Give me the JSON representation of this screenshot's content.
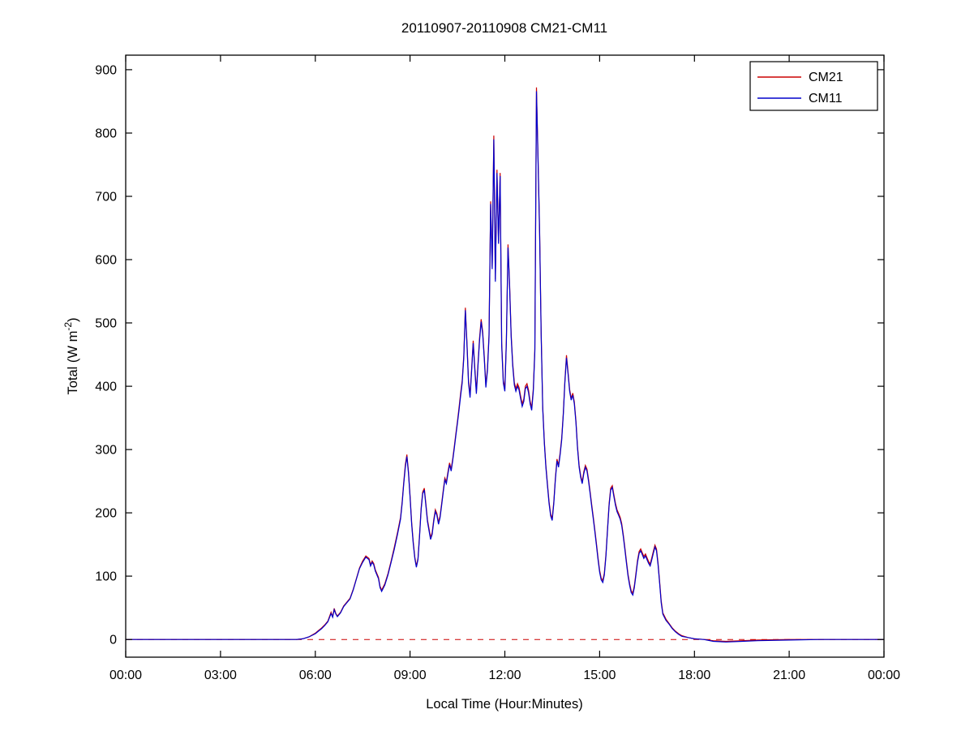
{
  "figure": {
    "title": "20110907-20110908 CM21-CM11",
    "xlabel": "Local Time (Hour:Minutes)",
    "ylabel_main": "Total (W m",
    "ylabel_sup": "-2",
    "ylabel_close": ")"
  },
  "legend": {
    "position": "top-right",
    "entries": [
      {
        "label": "CM21",
        "color": "#cc0000"
      },
      {
        "label": "CM11",
        "color": "#0000cc"
      }
    ]
  },
  "axes": {
    "xlim": [
      0,
      24
    ],
    "ylim": [
      -28,
      923
    ],
    "grid": false,
    "x_ticks": [
      {
        "value": 0,
        "label": "00:00"
      },
      {
        "value": 3,
        "label": "03:00"
      },
      {
        "value": 6,
        "label": "06:00"
      },
      {
        "value": 9,
        "label": "09:00"
      },
      {
        "value": 12,
        "label": "12:00"
      },
      {
        "value": 15,
        "label": "15:00"
      },
      {
        "value": 18,
        "label": "18:00"
      },
      {
        "value": 21,
        "label": "21:00"
      },
      {
        "value": 24,
        "label": "00:00"
      }
    ],
    "y_ticks": [
      0,
      100,
      200,
      300,
      400,
      500,
      600,
      700,
      800,
      900
    ]
  },
  "chart_data": {
    "type": "line",
    "title": "20110907-20110908 CM21-CM11",
    "xlabel": "Local Time (Hour:Minutes)",
    "ylabel": "Total (W m-2)",
    "x_unit": "hours_local_time",
    "xlim": [
      0,
      24
    ],
    "ylim": [
      -28,
      923
    ],
    "legend_position": "top-right",
    "grid": false,
    "series": [
      {
        "name": "CM21",
        "color": "#cc0000",
        "style": "solid"
      },
      {
        "name": "CM11",
        "color": "#0000cc",
        "style": "solid"
      }
    ],
    "zero_line": {
      "y": 0,
      "color": "#cc0000",
      "style": "dashed"
    },
    "points_format": [
      "time_hours",
      "CM21",
      "CM11"
    ],
    "points": [
      [
        0,
        0,
        0
      ],
      [
        0.5,
        0,
        0
      ],
      [
        1,
        0,
        0
      ],
      [
        1.5,
        0,
        0
      ],
      [
        2,
        0,
        0
      ],
      [
        2.5,
        0,
        0
      ],
      [
        3,
        0,
        0
      ],
      [
        3.5,
        0,
        0
      ],
      [
        4,
        0,
        0
      ],
      [
        4.5,
        0,
        0
      ],
      [
        5,
        0,
        0
      ],
      [
        5.4,
        0,
        0
      ],
      [
        5.6,
        1,
        1
      ],
      [
        5.8,
        4,
        4
      ],
      [
        6,
        10,
        9
      ],
      [
        6.1,
        14,
        13
      ],
      [
        6.2,
        18,
        17
      ],
      [
        6.3,
        23,
        22
      ],
      [
        6.4,
        29,
        28
      ],
      [
        6.5,
        43,
        41
      ],
      [
        6.55,
        36,
        35
      ],
      [
        6.6,
        49,
        47
      ],
      [
        6.65,
        41,
        40
      ],
      [
        6.7,
        37,
        36
      ],
      [
        6.8,
        43,
        42
      ],
      [
        6.9,
        53,
        52
      ],
      [
        7,
        59,
        58
      ],
      [
        7.1,
        65,
        64
      ],
      [
        7.2,
        79,
        78
      ],
      [
        7.3,
        96,
        95
      ],
      [
        7.4,
        113,
        112
      ],
      [
        7.5,
        124,
        122
      ],
      [
        7.6,
        132,
        130
      ],
      [
        7.7,
        128,
        126
      ],
      [
        7.75,
        118,
        116
      ],
      [
        7.8,
        124,
        122
      ],
      [
        7.85,
        120,
        118
      ],
      [
        7.9,
        110,
        108
      ],
      [
        8,
        98,
        96
      ],
      [
        8.05,
        84,
        82
      ],
      [
        8.1,
        78,
        76
      ],
      [
        8.2,
        88,
        86
      ],
      [
        8.3,
        104,
        102
      ],
      [
        8.4,
        124,
        122
      ],
      [
        8.5,
        145,
        142
      ],
      [
        8.6,
        168,
        165
      ],
      [
        8.7,
        193,
        190
      ],
      [
        8.75,
        218,
        215
      ],
      [
        8.8,
        248,
        245
      ],
      [
        8.85,
        276,
        272
      ],
      [
        8.9,
        292,
        289
      ],
      [
        8.95,
        265,
        262
      ],
      [
        9,
        228,
        225
      ],
      [
        9.05,
        185,
        182
      ],
      [
        9.1,
        155,
        152
      ],
      [
        9.15,
        130,
        128
      ],
      [
        9.2,
        116,
        114
      ],
      [
        9.25,
        128,
        126
      ],
      [
        9.3,
        165,
        162
      ],
      [
        9.35,
        208,
        205
      ],
      [
        9.4,
        233,
        230
      ],
      [
        9.45,
        239,
        236
      ],
      [
        9.5,
        215,
        212
      ],
      [
        9.55,
        189,
        186
      ],
      [
        9.6,
        175,
        172
      ],
      [
        9.65,
        161,
        158
      ],
      [
        9.7,
        169,
        166
      ],
      [
        9.75,
        189,
        186
      ],
      [
        9.8,
        205,
        202
      ],
      [
        9.85,
        199,
        196
      ],
      [
        9.9,
        185,
        182
      ],
      [
        9.95,
        195,
        192
      ],
      [
        10,
        215,
        212
      ],
      [
        10.05,
        235,
        232
      ],
      [
        10.1,
        255,
        252
      ],
      [
        10.15,
        249,
        246
      ],
      [
        10.2,
        265,
        262
      ],
      [
        10.25,
        279,
        276
      ],
      [
        10.3,
        269,
        266
      ],
      [
        10.35,
        285,
        282
      ],
      [
        10.4,
        305,
        302
      ],
      [
        10.45,
        325,
        322
      ],
      [
        10.5,
        345,
        342
      ],
      [
        10.55,
        366,
        362
      ],
      [
        10.6,
        389,
        385
      ],
      [
        10.65,
        409,
        405
      ],
      [
        10.7,
        449,
        445
      ],
      [
        10.75,
        524,
        520
      ],
      [
        10.8,
        469,
        465
      ],
      [
        10.85,
        409,
        405
      ],
      [
        10.9,
        386,
        382
      ],
      [
        10.95,
        429,
        425
      ],
      [
        11,
        472,
        468
      ],
      [
        11.05,
        429,
        425
      ],
      [
        11.1,
        392,
        388
      ],
      [
        11.15,
        436,
        432
      ],
      [
        11.2,
        476,
        472
      ],
      [
        11.25,
        506,
        502
      ],
      [
        11.3,
        486,
        482
      ],
      [
        11.35,
        446,
        442
      ],
      [
        11.4,
        402,
        398
      ],
      [
        11.45,
        429,
        425
      ],
      [
        11.5,
        482,
        478
      ],
      [
        11.55,
        692,
        688
      ],
      [
        11.6,
        589,
        585
      ],
      [
        11.65,
        796,
        790
      ],
      [
        11.7,
        569,
        565
      ],
      [
        11.75,
        742,
        737
      ],
      [
        11.8,
        629,
        625
      ],
      [
        11.85,
        737,
        732
      ],
      [
        11.9,
        469,
        465
      ],
      [
        11.95,
        409,
        405
      ],
      [
        12,
        396,
        392
      ],
      [
        12.05,
        474,
        470
      ],
      [
        12.1,
        624,
        619
      ],
      [
        12.15,
        564,
        560
      ],
      [
        12.2,
        482,
        478
      ],
      [
        12.25,
        436,
        432
      ],
      [
        12.3,
        406,
        402
      ],
      [
        12.35,
        396,
        392
      ],
      [
        12.4,
        404,
        400
      ],
      [
        12.45,
        398,
        394
      ],
      [
        12.5,
        384,
        380
      ],
      [
        12.55,
        372,
        368
      ],
      [
        12.6,
        380,
        376
      ],
      [
        12.65,
        400,
        396
      ],
      [
        12.7,
        404,
        400
      ],
      [
        12.75,
        394,
        390
      ],
      [
        12.8,
        376,
        372
      ],
      [
        12.85,
        366,
        362
      ],
      [
        12.9,
        396,
        392
      ],
      [
        12.95,
        459,
        455
      ],
      [
        13,
        872,
        866
      ],
      [
        13.05,
        764,
        759
      ],
      [
        13.1,
        644,
        640
      ],
      [
        13.15,
        484,
        480
      ],
      [
        13.2,
        368,
        365
      ],
      [
        13.25,
        313,
        310
      ],
      [
        13.3,
        275,
        272
      ],
      [
        13.35,
        245,
        242
      ],
      [
        13.4,
        218,
        215
      ],
      [
        13.45,
        198,
        195
      ],
      [
        13.5,
        191,
        188
      ],
      [
        13.55,
        218,
        215
      ],
      [
        13.6,
        255,
        252
      ],
      [
        13.65,
        285,
        282
      ],
      [
        13.7,
        275,
        272
      ],
      [
        13.75,
        295,
        292
      ],
      [
        13.8,
        318,
        315
      ],
      [
        13.85,
        358,
        355
      ],
      [
        13.9,
        408,
        405
      ],
      [
        13.95,
        449,
        445
      ],
      [
        14,
        423,
        420
      ],
      [
        14.05,
        395,
        392
      ],
      [
        14.1,
        381,
        378
      ],
      [
        14.15,
        389,
        386
      ],
      [
        14.2,
        375,
        372
      ],
      [
        14.25,
        345,
        342
      ],
      [
        14.3,
        305,
        302
      ],
      [
        14.35,
        275,
        272
      ],
      [
        14.4,
        259,
        256
      ],
      [
        14.45,
        249,
        246
      ],
      [
        14.5,
        265,
        262
      ],
      [
        14.55,
        275,
        272
      ],
      [
        14.6,
        269,
        266
      ],
      [
        14.65,
        253,
        250
      ],
      [
        14.7,
        233,
        230
      ],
      [
        14.75,
        213,
        210
      ],
      [
        14.8,
        193,
        190
      ],
      [
        14.85,
        173,
        170
      ],
      [
        14.9,
        151,
        148
      ],
      [
        14.95,
        129,
        126
      ],
      [
        15,
        109,
        106
      ],
      [
        15.05,
        97,
        94
      ],
      [
        15.1,
        93,
        90
      ],
      [
        15.15,
        105,
        102
      ],
      [
        15.2,
        135,
        132
      ],
      [
        15.25,
        175,
        172
      ],
      [
        15.3,
        215,
        212
      ],
      [
        15.35,
        239,
        236
      ],
      [
        15.4,
        243,
        240
      ],
      [
        15.45,
        229,
        226
      ],
      [
        15.5,
        215,
        212
      ],
      [
        15.55,
        205,
        202
      ],
      [
        15.6,
        199,
        196
      ],
      [
        15.65,
        193,
        190
      ],
      [
        15.7,
        183,
        180
      ],
      [
        15.75,
        165,
        162
      ],
      [
        15.8,
        145,
        142
      ],
      [
        15.85,
        123,
        120
      ],
      [
        15.9,
        103,
        100
      ],
      [
        15.95,
        88,
        85
      ],
      [
        16,
        77,
        74
      ],
      [
        16.05,
        73,
        70
      ],
      [
        16.1,
        85,
        82
      ],
      [
        16.15,
        105,
        102
      ],
      [
        16.2,
        125,
        122
      ],
      [
        16.25,
        139,
        136
      ],
      [
        16.3,
        143,
        140
      ],
      [
        16.35,
        137,
        134
      ],
      [
        16.4,
        131,
        128
      ],
      [
        16.45,
        135,
        132
      ],
      [
        16.5,
        129,
        126
      ],
      [
        16.55,
        123,
        120
      ],
      [
        16.6,
        119,
        116
      ],
      [
        16.65,
        129,
        126
      ],
      [
        16.7,
        139,
        136
      ],
      [
        16.75,
        149,
        146
      ],
      [
        16.8,
        143,
        140
      ],
      [
        16.85,
        121,
        118
      ],
      [
        16.9,
        91,
        88
      ],
      [
        16.95,
        61,
        58
      ],
      [
        17,
        42,
        40
      ],
      [
        17.1,
        32,
        30
      ],
      [
        17.2,
        25,
        24
      ],
      [
        17.3,
        18,
        17
      ],
      [
        17.4,
        13,
        12
      ],
      [
        17.5,
        9,
        8
      ],
      [
        17.6,
        6,
        5
      ],
      [
        17.8,
        3,
        3
      ],
      [
        18,
        1,
        1
      ],
      [
        18.3,
        0,
        0
      ],
      [
        18.6,
        -2,
        -3
      ],
      [
        19,
        -3,
        -4
      ],
      [
        19.5,
        -2,
        -3
      ],
      [
        20,
        -1,
        -2
      ],
      [
        21,
        0,
        -1
      ],
      [
        22,
        0,
        0
      ],
      [
        23,
        0,
        0
      ],
      [
        24,
        0,
        0
      ]
    ]
  }
}
